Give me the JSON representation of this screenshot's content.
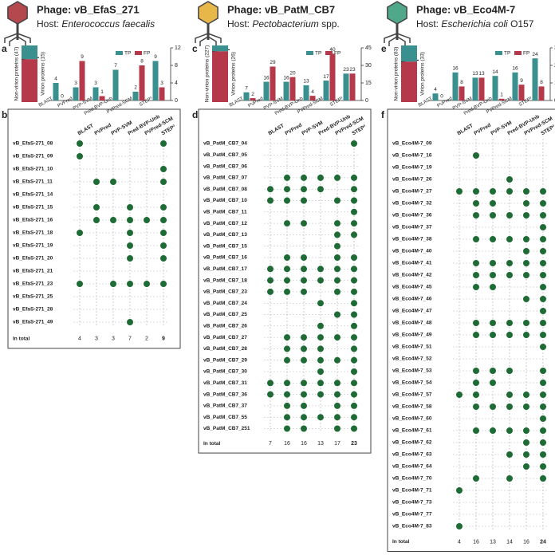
{
  "headers": [
    {
      "phage": "Phage: vB_EfaS_271",
      "host_prefix": "Host:",
      "host_italic": "Enterococcus faecalis"
    },
    {
      "phage": "Phage: vB_PatM_CB7",
      "host_prefix": "Host:",
      "host_italic": "Pectobacterium",
      "host_suffix": "spp."
    },
    {
      "phage": "Phage: vB_Eco4M-7",
      "host_prefix": "Host:",
      "host_italic": "Escherichia coli",
      "host_suffix": "O157"
    }
  ],
  "chart_data": [
    {
      "type": "bar",
      "letter": "a",
      "composition": [
        {
          "label": "Non-virion proteins (47)",
          "value": 47,
          "color": "#b5394a"
        },
        {
          "label": "Virion proteins (15)",
          "value": 15,
          "color": "#3a8f8f"
        }
      ],
      "categories": [
        "BLAST",
        "PVPred",
        "PVP-SVM",
        "Pred-BVP-Unb",
        "PVPred-SCM",
        "STEP³"
      ],
      "series": [
        {
          "name": "TP",
          "color": "#3a8f8f",
          "values": [
            4,
            3,
            3,
            7,
            2,
            9
          ]
        },
        {
          "name": "FP",
          "color": "#b5394a",
          "values": [
            0,
            9,
            1,
            null,
            8,
            3
          ]
        }
      ],
      "ylim": [
        0,
        12
      ],
      "yticks": [
        0,
        4,
        8,
        12
      ]
    },
    {
      "type": "dot",
      "letter": "b",
      "color": "#1e6b35",
      "categories": [
        "vB_EfaS-271_08",
        "vB_EfaS-271_09",
        "vB_EfaS-271_10",
        "vB_EfaS-271_11",
        "vB_EfaS-271_14",
        "vB_EfaS-271_15",
        "vB_EfaS-271_16",
        "vB_EfaS-271_18",
        "vB_EfaS-271_19",
        "vB_EfaS-271_20",
        "vB_EfaS-271_21",
        "vB_EfaS-271_23",
        "vB_EfaS-271_25",
        "vB_EfaS-271_28",
        "vB_EfaS-271_49"
      ],
      "series": [
        {
          "name": "BLAST",
          "values": [
            1,
            1,
            0,
            0,
            0,
            0,
            0,
            1,
            0,
            0,
            0,
            1,
            0,
            0,
            0
          ]
        },
        {
          "name": "PVPred",
          "values": [
            0,
            0,
            0,
            1,
            0,
            1,
            1,
            0,
            0,
            0,
            0,
            0,
            0,
            0,
            0
          ]
        },
        {
          "name": "PVP-SVM",
          "values": [
            0,
            0,
            0,
            1,
            0,
            0,
            1,
            0,
            0,
            0,
            0,
            1,
            0,
            0,
            0
          ]
        },
        {
          "name": "Pred-BVP-Unb",
          "values": [
            0,
            0,
            0,
            0,
            0,
            1,
            1,
            1,
            1,
            1,
            0,
            1,
            0,
            0,
            1
          ]
        },
        {
          "name": "PVPred-SCM",
          "values": [
            0,
            0,
            0,
            0,
            0,
            0,
            1,
            0,
            0,
            0,
            0,
            1,
            0,
            0,
            0
          ]
        },
        {
          "name": "STEP³",
          "values": [
            1,
            0,
            1,
            1,
            0,
            1,
            1,
            1,
            1,
            1,
            0,
            1,
            0,
            0,
            0
          ]
        }
      ],
      "total_label": "In total",
      "totals": [
        4,
        3,
        3,
        7,
        2,
        9
      ]
    },
    {
      "type": "bar",
      "letter": "c",
      "composition": [
        {
          "label": "Non-virion proteins (227)",
          "value": 227,
          "color": "#b5394a"
        },
        {
          "label": "Virion proteins (26)",
          "value": 26,
          "color": "#3a8f8f"
        }
      ],
      "categories": [
        "BLAST",
        "PVPred",
        "PVP-SVM",
        "Pred-BVP-Unb",
        "PVPred-SCM",
        "STEP³"
      ],
      "series": [
        {
          "name": "TP",
          "color": "#3a8f8f",
          "values": [
            7,
            16,
            16,
            13,
            17,
            23
          ]
        },
        {
          "name": "FP",
          "color": "#b5394a",
          "values": [
            2,
            29,
            20,
            4,
            40,
            23
          ]
        }
      ],
      "ylim": [
        0,
        45
      ],
      "yticks": [
        0,
        15,
        30,
        45
      ]
    },
    {
      "type": "dot",
      "letter": "d",
      "color": "#1e6b35",
      "categories": [
        "vB_PatM_CB7_04",
        "vB_PatM_CB7_05",
        "vB_PatM_CB7_06",
        "vB_PatM_CB7_07",
        "vB_PatM_CB7_08",
        "vB_PatM_CB7_10",
        "vB_PatM_CB7_11",
        "vB_PatM_CB7_12",
        "vB_PatM_CB7_13",
        "vB_PatM_CB7_15",
        "vB_PatM_CB7_16",
        "vB_PatM_CB7_17",
        "vB_PatM_CB7_18",
        "vB_PatM_CB7_23",
        "vB_PatM_CB7_24",
        "vB_PatM_CB7_25",
        "vB_PatM_CB7_26",
        "vB_PatM_CB7_27",
        "vB_PatM_CB7_28",
        "vB_PatM_CB7_29",
        "vB_PatM_CB7_30",
        "vB_PatM_CB7_31",
        "vB_PatM_CB7_36",
        "vB_PatM_CB7_37",
        "vB_PatM_CB7_55",
        "vB_PatM_CB7_251"
      ],
      "series": [
        {
          "name": "BLAST",
          "values": [
            0,
            0,
            0,
            0,
            1,
            1,
            0,
            0,
            0,
            0,
            0,
            1,
            1,
            1,
            0,
            0,
            0,
            0,
            0,
            0,
            0,
            1,
            1,
            0,
            0,
            0
          ]
        },
        {
          "name": "PVPred",
          "values": [
            0,
            0,
            0,
            1,
            1,
            1,
            0,
            1,
            0,
            0,
            1,
            1,
            1,
            1,
            0,
            0,
            0,
            1,
            1,
            1,
            0,
            1,
            1,
            1,
            1,
            1
          ]
        },
        {
          "name": "PVP-SVM",
          "values": [
            0,
            0,
            0,
            1,
            1,
            1,
            0,
            1,
            0,
            0,
            1,
            1,
            1,
            1,
            0,
            0,
            0,
            1,
            1,
            1,
            0,
            1,
            1,
            1,
            1,
            1
          ]
        },
        {
          "name": "Pred-BVP-Unb",
          "values": [
            0,
            0,
            0,
            1,
            1,
            0,
            0,
            0,
            0,
            0,
            0,
            1,
            1,
            0,
            1,
            0,
            1,
            1,
            1,
            1,
            1,
            1,
            1,
            0,
            1,
            0
          ]
        },
        {
          "name": "PVPred-SCM",
          "values": [
            0,
            0,
            0,
            1,
            0,
            1,
            0,
            1,
            1,
            1,
            1,
            1,
            1,
            1,
            0,
            1,
            0,
            1,
            0,
            1,
            0,
            1,
            1,
            1,
            1,
            1
          ]
        },
        {
          "name": "STEP³",
          "values": [
            1,
            0,
            0,
            1,
            1,
            1,
            1,
            1,
            1,
            0,
            1,
            1,
            1,
            1,
            1,
            1,
            1,
            1,
            1,
            1,
            1,
            1,
            1,
            1,
            1,
            1
          ]
        }
      ],
      "total_label": "In total",
      "totals": [
        7,
        16,
        16,
        13,
        17,
        23
      ]
    },
    {
      "type": "bar",
      "letter": "e",
      "composition": [
        {
          "label": "Non-virion proteins (83)",
          "value": 83,
          "color": "#b5394a"
        },
        {
          "label": "Virion proteins (33)",
          "value": 33,
          "color": "#3a8f8f"
        }
      ],
      "categories": [
        "BLAST",
        "PVPred",
        "PVP-SVM",
        "Pred-BVP-Unb",
        "PVPred-SCM",
        "STEP³"
      ],
      "series": [
        {
          "name": "TP",
          "color": "#3a8f8f",
          "values": [
            4,
            16,
            13,
            14,
            16,
            24
          ]
        },
        {
          "name": "FP",
          "color": "#b5394a",
          "values": [
            0,
            8,
            13,
            1,
            9,
            8
          ]
        }
      ],
      "ylim": [
        0,
        30
      ],
      "yticks": [
        0,
        10,
        20,
        30
      ]
    },
    {
      "type": "dot",
      "letter": "f",
      "color": "#1e6b35",
      "categories": [
        "vB_Eco4M-7_09",
        "vB_Eco4M-7_16",
        "vB_Eco4M-7_19",
        "vB_Eco4M-7_26",
        "vB_Eco4M-7_27",
        "vB_Eco4M-7_32",
        "vB_Eco4M-7_36",
        "vB_Eco4M-7_37",
        "vB_Eco4M-7_38",
        "vB_Eco4M-7_40",
        "vB_Eco4M-7_41",
        "vB_Eco4M-7_42",
        "vB_Eco4M-7_45",
        "vB_Eco4M-7_46",
        "vB_Eco4M-7_47",
        "vB_Eco4M-7_48",
        "vB_Eco4M-7_49",
        "vB_Eco4M-7_51",
        "vB_Eco4M-7_52",
        "vB_Eco4M-7_53",
        "vB_Eco4M-7_54",
        "vB_Eco4M-7_57",
        "vB_Eco4M-7_58",
        "vB_Eco4M-7_60",
        "vB_Eco4M-7_61",
        "vB_Eco4M-7_62",
        "vB_Eco4M-7_63",
        "vB_Eco4M-7_64",
        "vB_Eco4M-7_70",
        "vB_Eco4M-7_71",
        "vB_Eco4M-7_73",
        "vB_Eco4M-7_77",
        "vB_Eco4M-7_83"
      ],
      "series": [
        {
          "name": "BLAST",
          "values": [
            0,
            0,
            0,
            0,
            1,
            0,
            0,
            0,
            0,
            0,
            0,
            0,
            0,
            0,
            0,
            0,
            0,
            0,
            0,
            0,
            0,
            1,
            0,
            0,
            0,
            0,
            0,
            0,
            0,
            1,
            0,
            0,
            1
          ]
        },
        {
          "name": "PVPred",
          "values": [
            0,
            1,
            0,
            0,
            1,
            1,
            1,
            0,
            1,
            0,
            1,
            1,
            1,
            0,
            0,
            1,
            1,
            0,
            0,
            1,
            1,
            1,
            1,
            0,
            1,
            0,
            0,
            0,
            1,
            0,
            0,
            0,
            0
          ]
        },
        {
          "name": "PVP-SVM",
          "values": [
            0,
            0,
            0,
            0,
            1,
            1,
            1,
            0,
            1,
            0,
            1,
            1,
            1,
            0,
            0,
            1,
            1,
            0,
            0,
            1,
            1,
            0,
            1,
            0,
            1,
            0,
            0,
            0,
            0,
            0,
            0,
            0,
            0
          ]
        },
        {
          "name": "Pred-BVP-Unb",
          "values": [
            0,
            0,
            0,
            1,
            1,
            0,
            1,
            0,
            1,
            0,
            1,
            1,
            0,
            0,
            0,
            1,
            1,
            0,
            0,
            1,
            0,
            1,
            1,
            0,
            1,
            0,
            1,
            0,
            1,
            0,
            0,
            0,
            0
          ]
        },
        {
          "name": "PVPred-SCM",
          "values": [
            0,
            0,
            0,
            0,
            1,
            1,
            1,
            0,
            1,
            1,
            1,
            1,
            0,
            1,
            0,
            1,
            1,
            0,
            0,
            0,
            0,
            1,
            1,
            0,
            1,
            1,
            1,
            1,
            0,
            0,
            0,
            0,
            0
          ]
        },
        {
          "name": "STEP³",
          "values": [
            0,
            0,
            0,
            0,
            1,
            1,
            1,
            1,
            1,
            1,
            1,
            1,
            1,
            1,
            1,
            1,
            1,
            1,
            0,
            1,
            1,
            1,
            1,
            1,
            1,
            1,
            1,
            1,
            1,
            0,
            0,
            0,
            0
          ]
        }
      ],
      "total_label": "In total",
      "totals": [
        4,
        16,
        13,
        14,
        16,
        24
      ]
    }
  ]
}
